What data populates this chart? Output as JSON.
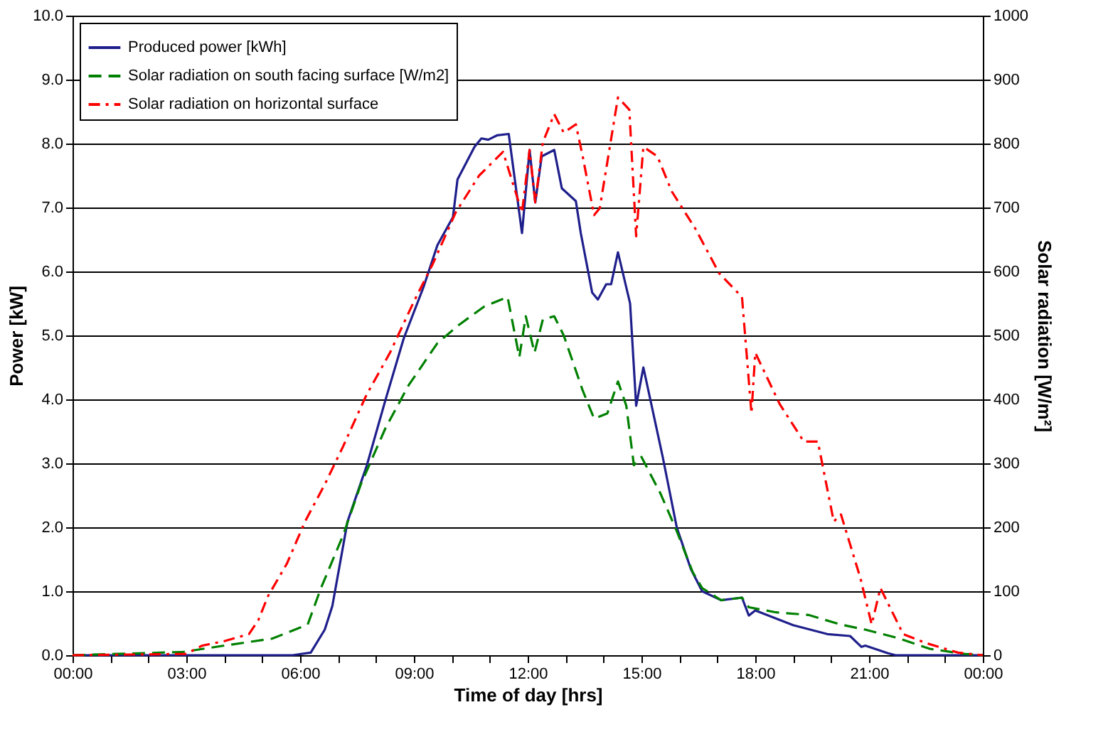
{
  "chart_data": {
    "type": "line",
    "xlabel": "Time of day [hrs]",
    "ylabel": "Power  [kW]",
    "y2label": "Solar radiation  [W/m²]",
    "xlim": [
      0,
      24
    ],
    "xticks": [
      {
        "value": 0,
        "label": "00:00"
      },
      {
        "value": 1,
        "label": null
      },
      {
        "value": 2,
        "label": null
      },
      {
        "value": 3,
        "label": "03:00"
      },
      {
        "value": 4,
        "label": null
      },
      {
        "value": 5,
        "label": null
      },
      {
        "value": 6,
        "label": "06:00"
      },
      {
        "value": 7,
        "label": null
      },
      {
        "value": 8,
        "label": null
      },
      {
        "value": 9,
        "label": "09:00"
      },
      {
        "value": 10,
        "label": null
      },
      {
        "value": 11,
        "label": null
      },
      {
        "value": 12,
        "label": "12:00"
      },
      {
        "value": 13,
        "label": null
      },
      {
        "value": 14,
        "label": null
      },
      {
        "value": 15,
        "label": "15:00"
      },
      {
        "value": 16,
        "label": null
      },
      {
        "value": 17,
        "label": null
      },
      {
        "value": 18,
        "label": "18:00"
      },
      {
        "value": 19,
        "label": null
      },
      {
        "value": 20,
        "label": null
      },
      {
        "value": 21,
        "label": "21:00"
      },
      {
        "value": 22,
        "label": null
      },
      {
        "value": 23,
        "label": null
      },
      {
        "value": 24,
        "label": "00:00"
      }
    ],
    "ylim": [
      0,
      10
    ],
    "yticks": [
      {
        "value": 0,
        "label": "0.0"
      },
      {
        "value": 1,
        "label": "1.0"
      },
      {
        "value": 2,
        "label": "2.0"
      },
      {
        "value": 3,
        "label": "3.0"
      },
      {
        "value": 4,
        "label": "4.0"
      },
      {
        "value": 5,
        "label": "5.0"
      },
      {
        "value": 6,
        "label": "6.0"
      },
      {
        "value": 7,
        "label": "7.0"
      },
      {
        "value": 8,
        "label": "8.0"
      },
      {
        "value": 9,
        "label": "9.0"
      },
      {
        "value": 10,
        "label": "10.0"
      }
    ],
    "y2lim": [
      0,
      1000
    ],
    "y2ticks": [
      0,
      100,
      200,
      300,
      400,
      500,
      600,
      700,
      800,
      900,
      1000
    ],
    "grid": "y",
    "legend": "top left",
    "marker": "none",
    "series": [
      {
        "name": "Produced power [kWh]",
        "color": "#1f1f8c",
        "line_style": "solid",
        "x": [
          0,
          5.8,
          6.28,
          6.65,
          6.85,
          7.25,
          7.76,
          8.25,
          8.73,
          9.25,
          9.62,
          10.03,
          10.15,
          10.6,
          10.78,
          10.96,
          11.2,
          11.5,
          11.85,
          12.05,
          12.2,
          12.37,
          12.7,
          12.9,
          13.27,
          13.4,
          13.7,
          13.85,
          14.07,
          14.2,
          14.38,
          14.7,
          14.86,
          15.05,
          15.56,
          15.93,
          16.3,
          16.6,
          17.1,
          17.65,
          17.83,
          18.0,
          19.0,
          19.9,
          20.5,
          20.8,
          20.9,
          21.5,
          21.7,
          24
        ],
        "values": [
          0,
          0,
          0.04,
          0.4,
          0.77,
          2.09,
          2.97,
          3.99,
          4.95,
          5.75,
          6.41,
          6.85,
          7.44,
          7.95,
          8.08,
          8.06,
          8.13,
          8.15,
          6.6,
          7.9,
          7.08,
          7.8,
          7.9,
          7.3,
          7.1,
          6.6,
          5.67,
          5.56,
          5.8,
          5.8,
          6.3,
          5.5,
          3.9,
          4.5,
          3.1,
          2.0,
          1.35,
          1.0,
          0.86,
          0.9,
          0.62,
          0.7,
          0.47,
          0.33,
          0.3,
          0.13,
          0.15,
          0.03,
          0,
          0
        ]
      },
      {
        "name": "Solar radiation on south facing surface [W/m2]",
        "color": "#008000",
        "line_style": "dashed",
        "axis": "y2",
        "x": [
          0,
          2.9,
          4.0,
          5.27,
          6.2,
          6.55,
          7.13,
          7.6,
          8.25,
          8.86,
          9.62,
          10.2,
          10.85,
          11.47,
          11.78,
          11.95,
          12.18,
          12.4,
          12.7,
          12.95,
          13.45,
          13.75,
          14.1,
          14.38,
          14.6,
          14.8,
          15.0,
          15.5,
          15.93,
          16.35,
          16.6,
          17.1,
          17.65,
          17.83,
          18.55,
          19.4,
          20.25,
          20.9,
          21.75,
          22.6,
          23.5,
          24
        ],
        "values": [
          0,
          5,
          15,
          26,
          48,
          105,
          187,
          267,
          355,
          422,
          488,
          517,
          545,
          560,
          466,
          530,
          473,
          525,
          530,
          500,
          414,
          370,
          378,
          428,
          390,
          297,
          310,
          253,
          194,
          130,
          105,
          86,
          90,
          75,
          67,
          63,
          48,
          40,
          27,
          10,
          2,
          0
        ]
      },
      {
        "name": "Solar radiation on horizontal surface",
        "color": "#ff0000",
        "line_style": "dashdot",
        "axis": "y2",
        "x": [
          0,
          3.0,
          3.42,
          4.0,
          4.65,
          4.9,
          5.15,
          5.65,
          6.13,
          6.65,
          7.13,
          7.75,
          8.37,
          9.0,
          9.5,
          10.1,
          10.72,
          11.35,
          11.85,
          12.05,
          12.2,
          12.4,
          12.7,
          12.95,
          13.27,
          13.45,
          13.75,
          13.9,
          14.38,
          14.68,
          14.86,
          15.05,
          15.42,
          15.8,
          16.42,
          17.05,
          17.65,
          17.9,
          18.0,
          18.65,
          19.28,
          19.65,
          20.07,
          20.26,
          20.77,
          21.07,
          21.3,
          21.9,
          22.5,
          23.35,
          24
        ],
        "values": [
          0,
          2,
          15,
          22,
          33,
          55,
          92,
          143,
          209,
          267,
          326,
          407,
          473,
          553,
          612,
          692,
          750,
          787,
          692,
          790,
          708,
          802,
          846,
          817,
          830,
          780,
          688,
          699,
          872,
          853,
          655,
          795,
          780,
          725,
          667,
          597,
          560,
          378,
          473,
          392,
          334,
          334,
          209,
          220,
          121,
          48,
          105,
          33,
          19,
          4,
          0
        ]
      }
    ]
  }
}
